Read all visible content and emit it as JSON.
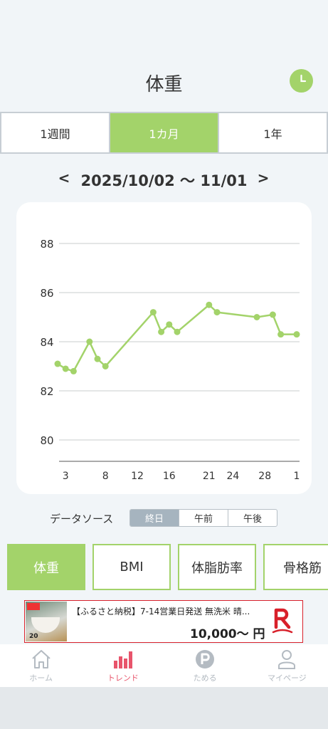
{
  "header": {
    "title": "体重",
    "clock_icon": "clock-icon"
  },
  "range_tabs": [
    {
      "label": "1週間",
      "active": false
    },
    {
      "label": "1カ月",
      "active": true
    },
    {
      "label": "1年",
      "active": false
    }
  ],
  "date_nav": {
    "prev": "<",
    "range": "2025/10/02 〜 11/01",
    "next": ">"
  },
  "chart_data": {
    "type": "line",
    "x_ticks": [
      "3",
      "8",
      "12",
      "16",
      "21",
      "24",
      "28",
      "1"
    ],
    "y_ticks": [
      80,
      82,
      84,
      86,
      88
    ],
    "ylim": [
      79,
      89
    ],
    "grid": true,
    "series": [
      {
        "color": "#a3d36a",
        "x": [
          "10/02",
          "10/03",
          "10/04",
          "10/06",
          "10/07",
          "10/08",
          "10/14",
          "10/15",
          "10/16",
          "10/17",
          "10/21",
          "10/22",
          "10/27",
          "10/29",
          "10/30",
          "11/01"
        ],
        "values": [
          83.1,
          82.9,
          82.8,
          84.0,
          83.3,
          83.0,
          85.2,
          84.4,
          84.7,
          84.4,
          85.5,
          85.2,
          85.0,
          85.1,
          84.3,
          84.3
        ]
      }
    ]
  },
  "data_source": {
    "label": "データソース",
    "options": [
      {
        "label": "終日",
        "active": true
      },
      {
        "label": "午前",
        "active": false
      },
      {
        "label": "午後",
        "active": false
      }
    ]
  },
  "metric_tabs": [
    {
      "label": "体重",
      "active": true
    },
    {
      "label": "BMI",
      "active": false
    },
    {
      "label": "体脂肪率",
      "active": false
    },
    {
      "label": "骨格筋",
      "active": false
    }
  ],
  "ad": {
    "title": "【ふるさと納税】7-14営業日発送 無洗米 晴...",
    "price": "10,000〜 円",
    "thumb_text": "20",
    "brand_color": "#d8202a"
  },
  "bottom_nav": [
    {
      "label": "ホーム",
      "icon": "home-icon",
      "active": false
    },
    {
      "label": "トレンド",
      "icon": "bar-chart-icon",
      "active": true
    },
    {
      "label": "ためる",
      "icon": "points-icon",
      "active": false
    },
    {
      "label": "マイページ",
      "icon": "user-icon",
      "active": false
    }
  ],
  "colors": {
    "accent": "#a3d36a",
    "active_nav": "#e8546b",
    "background": "#f1f5f8"
  }
}
